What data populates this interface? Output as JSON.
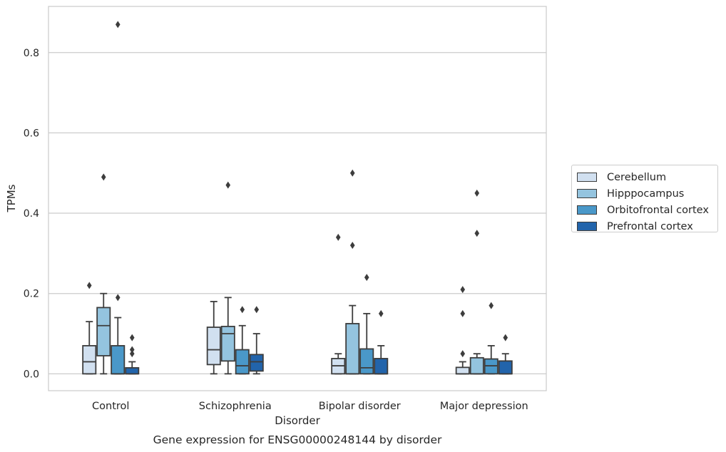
{
  "chart_data": {
    "type": "boxplot",
    "title": "Gene expression for ENSG00000248144 by disorder",
    "xlabel": "Disorder",
    "ylabel": "TPMs",
    "ylim": [
      -0.042,
      0.915
    ],
    "yticks": [
      "0.0",
      "0.2",
      "0.4",
      "0.6",
      "0.8"
    ],
    "ytick_values": [
      0.0,
      0.2,
      0.4,
      0.6,
      0.8
    ],
    "grid": "horizontal",
    "legend_placement": "right, outside plot",
    "categories": [
      "Control",
      "Schizophrenia",
      "Bipolar disorder",
      "Major depression"
    ],
    "series": [
      {
        "name": "Cerebellum",
        "color": "#d1e0f0",
        "boxes": [
          {
            "q1": 0.0,
            "median": 0.03,
            "q3": 0.07,
            "whislo": 0.0,
            "whishi": 0.13,
            "fliers": [
              0.22
            ]
          },
          {
            "q1": 0.023,
            "median": 0.06,
            "q3": 0.116,
            "whislo": 0.0,
            "whishi": 0.18,
            "fliers": []
          },
          {
            "q1": 0.0,
            "median": 0.02,
            "q3": 0.038,
            "whislo": 0.0,
            "whishi": 0.05,
            "fliers": [
              0.34
            ]
          },
          {
            "q1": 0.0,
            "median": 0.0,
            "q3": 0.016,
            "whislo": 0.0,
            "whishi": 0.03,
            "fliers": [
              0.05,
              0.15,
              0.21
            ]
          }
        ]
      },
      {
        "name": "Hipppocampus",
        "color": "#94c4df",
        "boxes": [
          {
            "q1": 0.045,
            "median": 0.12,
            "q3": 0.165,
            "whislo": 0.0,
            "whishi": 0.2,
            "fliers": [
              0.49
            ]
          },
          {
            "q1": 0.032,
            "median": 0.1,
            "q3": 0.118,
            "whislo": 0.0,
            "whishi": 0.19,
            "fliers": [
              0.47
            ]
          },
          {
            "q1": 0.0,
            "median": 0.0,
            "q3": 0.125,
            "whislo": 0.0,
            "whishi": 0.17,
            "fliers": [
              0.32,
              0.5
            ]
          },
          {
            "q1": 0.0,
            "median": 0.0,
            "q3": 0.04,
            "whislo": 0.0,
            "whishi": 0.05,
            "fliers": [
              0.35,
              0.45
            ]
          }
        ]
      },
      {
        "name": "Orbitofrontal cortex",
        "color": "#4a98c9",
        "boxes": [
          {
            "q1": 0.0,
            "median": 0.0,
            "q3": 0.07,
            "whislo": 0.0,
            "whishi": 0.14,
            "fliers": [
              0.19,
              0.87
            ]
          },
          {
            "q1": 0.0,
            "median": 0.02,
            "q3": 0.06,
            "whislo": 0.0,
            "whishi": 0.12,
            "fliers": [
              0.16
            ]
          },
          {
            "q1": 0.0,
            "median": 0.015,
            "q3": 0.062,
            "whislo": 0.0,
            "whishi": 0.15,
            "fliers": [
              0.24
            ]
          },
          {
            "q1": 0.0,
            "median": 0.02,
            "q3": 0.037,
            "whislo": 0.0,
            "whishi": 0.07,
            "fliers": [
              0.17
            ]
          }
        ]
      },
      {
        "name": "Prefrontal cortex",
        "color": "#2264ab",
        "boxes": [
          {
            "q1": 0.0,
            "median": 0.0,
            "q3": 0.015,
            "whislo": 0.0,
            "whishi": 0.03,
            "fliers": [
              0.05,
              0.06,
              0.09
            ]
          },
          {
            "q1": 0.007,
            "median": 0.03,
            "q3": 0.048,
            "whislo": 0.0,
            "whishi": 0.1,
            "fliers": [
              0.16
            ]
          },
          {
            "q1": 0.0,
            "median": 0.0,
            "q3": 0.038,
            "whislo": 0.0,
            "whishi": 0.07,
            "fliers": [
              0.15
            ]
          },
          {
            "q1": 0.0,
            "median": 0.0,
            "q3": 0.032,
            "whislo": 0.0,
            "whishi": 0.05,
            "fliers": [
              0.09
            ]
          }
        ]
      }
    ]
  }
}
